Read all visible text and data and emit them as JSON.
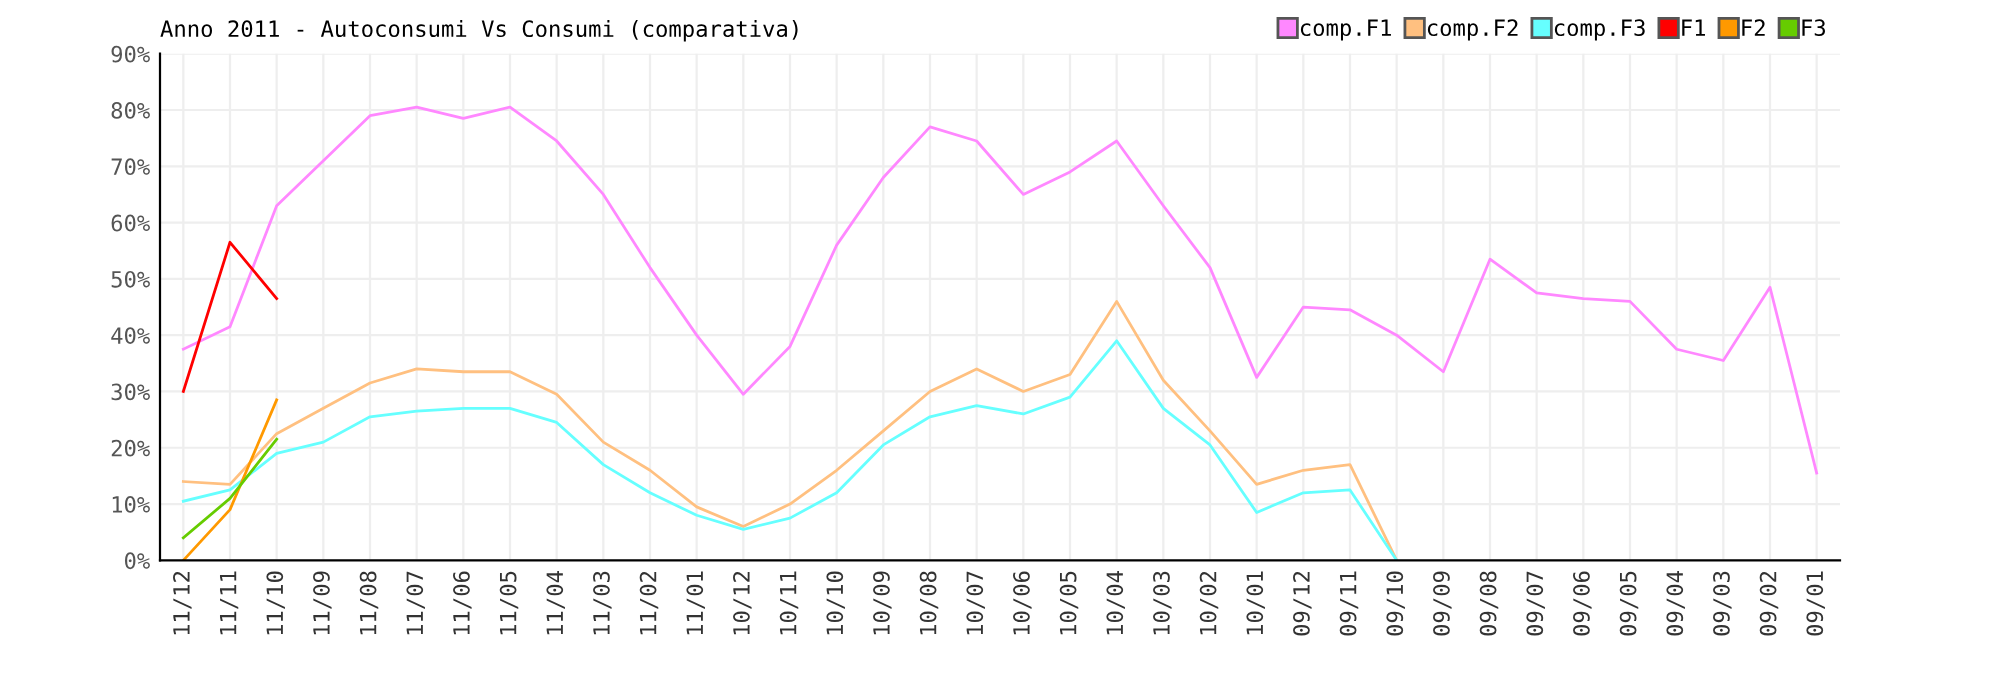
{
  "chart_data": {
    "type": "line",
    "title": "Anno 2011 - Autoconsumi Vs Consumi (comparativa)",
    "categories": [
      "11/12",
      "11/11",
      "11/10",
      "11/09",
      "11/08",
      "11/07",
      "11/06",
      "11/05",
      "11/04",
      "11/03",
      "11/02",
      "11/01",
      "10/12",
      "10/11",
      "10/10",
      "10/09",
      "10/08",
      "10/07",
      "10/06",
      "10/05",
      "10/04",
      "10/03",
      "10/02",
      "10/01",
      "09/12",
      "09/11",
      "09/10",
      "09/09",
      "09/08",
      "09/07",
      "09/06",
      "09/05",
      "09/04",
      "09/03",
      "09/02",
      "09/01"
    ],
    "series": [
      {
        "name": "comp.F1",
        "color": "#ff88ff",
        "values": [
          37.5,
          41.5,
          63,
          71,
          79,
          80.5,
          78.5,
          80.5,
          74.5,
          65,
          52,
          40,
          29.5,
          38,
          56,
          68,
          77,
          74.5,
          65,
          69,
          74.5,
          63,
          52,
          32.5,
          45,
          44.5,
          40,
          33.5,
          53.5,
          47.5,
          46.5,
          46,
          37.5,
          35.5,
          48.5,
          15.5
        ]
      },
      {
        "name": "comp.F2",
        "color": "#ffc080",
        "values": [
          14,
          13.5,
          22.5,
          27,
          31.5,
          34,
          33.5,
          33.5,
          29.5,
          21,
          16,
          9.5,
          6,
          10,
          16,
          23,
          30,
          34,
          30,
          33,
          46,
          32,
          23,
          13.5,
          16,
          17,
          0,
          null,
          null,
          null,
          null,
          null,
          null,
          null,
          null,
          null
        ]
      },
      {
        "name": "comp.F3",
        "color": "#66ffff",
        "values": [
          10.5,
          12.5,
          19,
          21,
          25.5,
          26.5,
          27,
          27,
          24.5,
          17,
          12,
          8,
          5.5,
          7.5,
          12,
          20.5,
          25.5,
          27.5,
          26,
          29,
          39,
          27,
          20.5,
          8.5,
          12,
          12.5,
          0,
          null,
          null,
          null,
          null,
          null,
          null,
          null,
          null,
          null
        ]
      },
      {
        "name": "F1",
        "color": "#ff0000",
        "values": [
          30,
          56.5,
          46.5,
          null,
          null,
          null,
          null,
          null,
          null,
          null,
          null,
          null,
          null,
          null,
          null,
          null,
          null,
          null,
          null,
          null,
          null,
          null,
          null,
          null,
          null,
          null,
          null,
          null,
          null,
          null,
          null,
          null,
          null,
          null,
          null,
          null
        ]
      },
      {
        "name": "F2",
        "color": "#ff9900",
        "values": [
          0,
          9,
          28.5,
          null,
          null,
          null,
          null,
          null,
          null,
          null,
          null,
          null,
          null,
          null,
          null,
          null,
          null,
          null,
          null,
          null,
          null,
          null,
          null,
          null,
          null,
          null,
          null,
          null,
          null,
          null,
          null,
          null,
          null,
          null,
          null,
          null
        ]
      },
      {
        "name": "F3",
        "color": "#66cc00",
        "values": [
          4,
          11,
          21.5,
          null,
          null,
          null,
          null,
          null,
          null,
          null,
          null,
          null,
          null,
          null,
          null,
          null,
          null,
          null,
          null,
          null,
          null,
          null,
          null,
          null,
          null,
          null,
          null,
          null,
          null,
          null,
          null,
          null,
          null,
          null,
          null,
          null
        ]
      }
    ],
    "ylim": [
      0,
      90
    ],
    "yticks": [
      {
        "value": 0,
        "label": "0%"
      },
      {
        "value": 10,
        "label": "10%"
      },
      {
        "value": 20,
        "label": "20%"
      },
      {
        "value": 30,
        "label": "30%"
      },
      {
        "value": 40,
        "label": "40%"
      },
      {
        "value": 50,
        "label": "50%"
      },
      {
        "value": 60,
        "label": "60%"
      },
      {
        "value": 70,
        "label": "70%"
      },
      {
        "value": 80,
        "label": "80%"
      },
      {
        "value": 90,
        "label": "90%"
      }
    ],
    "grid": true,
    "legend": "top right",
    "marker": "none",
    "line_style": "solid"
  }
}
